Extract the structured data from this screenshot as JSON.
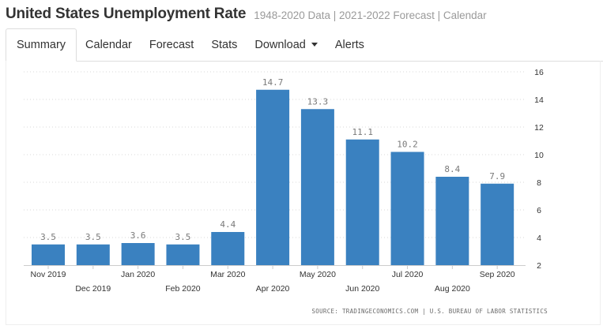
{
  "header": {
    "title": "United States Unemployment Rate",
    "subtitle": "1948-2020 Data | 2021-2022 Forecast | Calendar"
  },
  "tabs": [
    {
      "label": "Summary",
      "active": true
    },
    {
      "label": "Calendar",
      "active": false
    },
    {
      "label": "Forecast",
      "active": false
    },
    {
      "label": "Stats",
      "active": false
    },
    {
      "label": "Download",
      "active": false,
      "dropdown": true
    },
    {
      "label": "Alerts",
      "active": false
    }
  ],
  "source_text": "SOURCE: TRADINGECONOMICS.COM | U.S. BUREAU OF LABOR STATISTICS",
  "chart_data": {
    "type": "bar",
    "categories": [
      "Nov 2019",
      "Dec 2019",
      "Jan 2020",
      "Feb 2020",
      "Mar 2020",
      "Apr 2020",
      "May 2020",
      "Jun 2020",
      "Jul 2020",
      "Aug 2020",
      "Sep 2020"
    ],
    "values": [
      3.5,
      3.5,
      3.6,
      3.5,
      4.4,
      14.7,
      13.3,
      11.1,
      10.2,
      8.4,
      7.9
    ],
    "value_labels": [
      "3.5",
      "3.5",
      "3.6",
      "3.5",
      "4.4",
      "14.7",
      "13.3",
      "11.1",
      "10.2",
      "8.4",
      "7.9"
    ],
    "title": "",
    "xlabel": "",
    "ylabel": "",
    "ylim": [
      2,
      16
    ],
    "yticks": [
      2,
      4,
      6,
      8,
      10,
      12,
      14,
      16
    ],
    "ytick_labels": [
      "2",
      "4",
      "6",
      "8",
      "10",
      "12",
      "14",
      "16"
    ],
    "y_axis_side": "right",
    "grid": true,
    "legend": false,
    "bar_color": "#3a81c0",
    "label_color": "#7a7a7a"
  }
}
